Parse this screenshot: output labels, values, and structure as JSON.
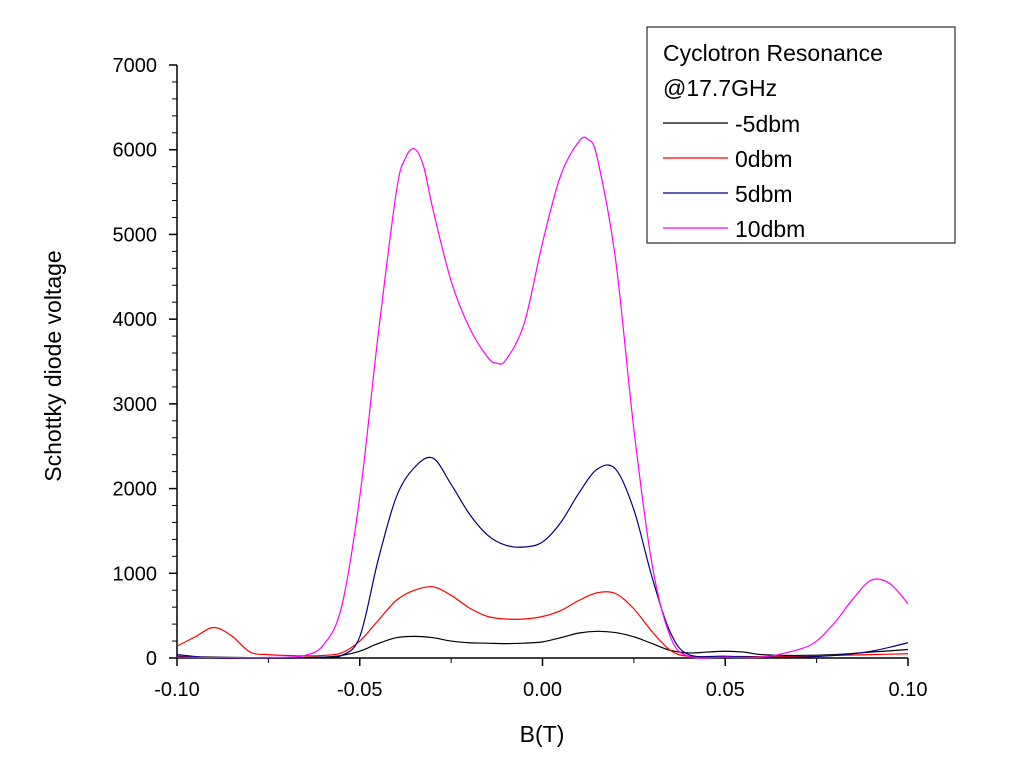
{
  "chart_data": {
    "type": "line",
    "xlabel": "B(T)",
    "ylabel": "Schottky diode voltage",
    "xlim": [
      -0.1,
      0.1
    ],
    "ylim": [
      0,
      7000
    ],
    "x_ticks": [
      -0.1,
      -0.05,
      0.0,
      0.05,
      0.1
    ],
    "x_tick_labels": [
      "-0.10",
      "-0.05",
      "0.00",
      "0.05",
      "0.10"
    ],
    "y_ticks": [
      0,
      1000,
      2000,
      3000,
      4000,
      5000,
      6000,
      7000
    ],
    "y_tick_labels": [
      "0",
      "1000",
      "2000",
      "3000",
      "4000",
      "5000",
      "6000",
      "7000"
    ],
    "grid": false,
    "legend": {
      "title_lines": [
        "Cyclotron Resonance",
        "@17.7GHz"
      ],
      "placement": "top-right"
    },
    "series": [
      {
        "name": "-5dbm",
        "color": "#000000",
        "x": [
          -0.1,
          -0.09,
          -0.08,
          -0.07,
          -0.06,
          -0.055,
          -0.05,
          -0.045,
          -0.04,
          -0.035,
          -0.03,
          -0.025,
          -0.02,
          -0.015,
          -0.01,
          -0.005,
          0.0,
          0.005,
          0.01,
          0.015,
          0.02,
          0.025,
          0.03,
          0.035,
          0.04,
          0.045,
          0.05,
          0.055,
          0.06,
          0.07,
          0.08,
          0.09,
          0.1
        ],
        "values": [
          20,
          10,
          5,
          5,
          10,
          30,
          80,
          170,
          240,
          255,
          240,
          200,
          180,
          175,
          170,
          175,
          190,
          240,
          295,
          315,
          300,
          250,
          170,
          90,
          60,
          70,
          80,
          70,
          40,
          30,
          40,
          70,
          100
        ]
      },
      {
        "name": "0dbm",
        "color": "#ff0000",
        "x": [
          -0.1,
          -0.095,
          -0.09,
          -0.085,
          -0.08,
          -0.075,
          -0.07,
          -0.065,
          -0.06,
          -0.055,
          -0.05,
          -0.045,
          -0.04,
          -0.035,
          -0.03,
          -0.025,
          -0.02,
          -0.015,
          -0.01,
          -0.005,
          0.0,
          0.005,
          0.01,
          0.015,
          0.02,
          0.025,
          0.03,
          0.035,
          0.04,
          0.05,
          0.06,
          0.07,
          0.08,
          0.09,
          0.1
        ],
        "values": [
          140,
          250,
          360,
          260,
          70,
          40,
          30,
          25,
          30,
          60,
          200,
          440,
          680,
          800,
          840,
          740,
          590,
          490,
          460,
          460,
          490,
          560,
          680,
          770,
          760,
          580,
          310,
          90,
          20,
          20,
          15,
          20,
          30,
          40,
          50
        ]
      },
      {
        "name": "5dbm",
        "color": "#000080",
        "x": [
          -0.1,
          -0.09,
          -0.08,
          -0.07,
          -0.06,
          -0.055,
          -0.05,
          -0.045,
          -0.04,
          -0.035,
          -0.03,
          -0.025,
          -0.02,
          -0.015,
          -0.01,
          -0.005,
          0.0,
          0.005,
          0.01,
          0.015,
          0.02,
          0.025,
          0.03,
          0.035,
          0.04,
          0.05,
          0.06,
          0.07,
          0.08,
          0.09,
          0.1
        ],
        "values": [
          40,
          0,
          0,
          0,
          10,
          30,
          250,
          1150,
          1900,
          2250,
          2360,
          2050,
          1700,
          1450,
          1330,
          1310,
          1370,
          1600,
          1950,
          2230,
          2230,
          1750,
          950,
          300,
          40,
          20,
          10,
          10,
          30,
          80,
          180
        ]
      },
      {
        "name": "10dbm",
        "color": "#ff00ff",
        "x": [
          -0.1,
          -0.09,
          -0.08,
          -0.07,
          -0.065,
          -0.06,
          -0.055,
          -0.05,
          -0.045,
          -0.04,
          -0.0375,
          -0.035,
          -0.0325,
          -0.03,
          -0.025,
          -0.02,
          -0.015,
          -0.0125,
          -0.01,
          -0.005,
          0.0,
          0.005,
          0.01,
          0.0125,
          0.015,
          0.02,
          0.025,
          0.03,
          0.035,
          0.04,
          0.05,
          0.06,
          0.07,
          0.075,
          0.08,
          0.085,
          0.09,
          0.095,
          0.1
        ],
        "values": [
          10,
          5,
          5,
          10,
          30,
          150,
          600,
          1900,
          3800,
          5500,
          5900,
          6010,
          5800,
          5300,
          4450,
          3900,
          3550,
          3480,
          3520,
          3950,
          4900,
          5700,
          6100,
          6120,
          5900,
          4700,
          2700,
          1100,
          250,
          20,
          10,
          10,
          100,
          200,
          420,
          700,
          920,
          880,
          640
        ]
      }
    ]
  }
}
